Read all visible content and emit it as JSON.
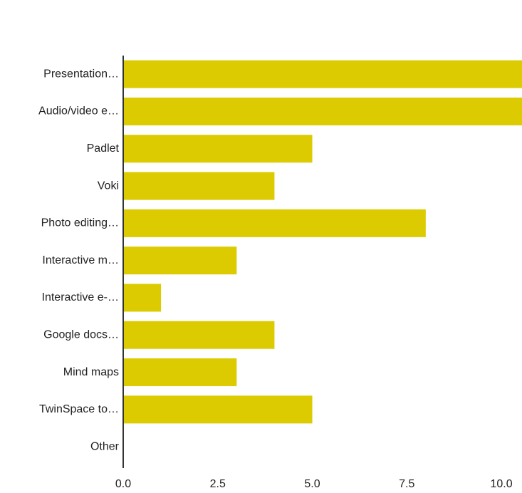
{
  "chart_data": {
    "type": "bar",
    "orientation": "horizontal",
    "categories": [
      "Presentation…",
      "Audio/video e…",
      "Padlet",
      "Voki",
      "Photo editing…",
      "Interactive m…",
      "Interactive e-…",
      "Google docs…",
      "Mind maps",
      "TwinSpace to…",
      "Other"
    ],
    "values": [
      11,
      11,
      5,
      4,
      8,
      3,
      1,
      4,
      3,
      5,
      0
    ],
    "color": "#dbcb00",
    "xlim": [
      0,
      10.5
    ],
    "xticks": [
      {
        "value": 0,
        "label": "0.0"
      },
      2.5,
      {
        "value": 5,
        "label": "5.0"
      },
      7.5,
      {
        "value": 10,
        "label": "10.0"
      }
    ],
    "grid": false
  }
}
